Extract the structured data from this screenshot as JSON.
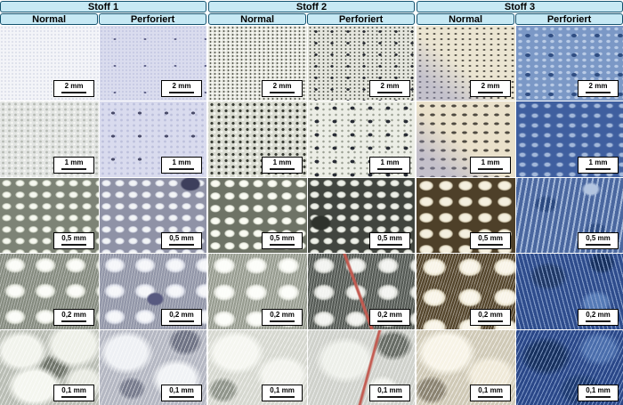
{
  "figure": {
    "groups": [
      {
        "title": "Stoff 1",
        "columns": [
          "Normal",
          "Perforiert"
        ]
      },
      {
        "title": "Stoff 2",
        "columns": [
          "Normal",
          "Perforiert"
        ]
      },
      {
        "title": "Stoff 3",
        "columns": [
          "Normal",
          "Perforiert"
        ]
      }
    ],
    "scale_labels": [
      "2 mm",
      "1 mm",
      "0,5 mm",
      "0,2 mm",
      "0,1 mm"
    ],
    "colors": {
      "header_fill": "#c7e9f4",
      "header_border": "#14536f",
      "scale_box_bg": "#ffffff",
      "scale_box_border": "#000000",
      "scale_bar": "#1a1a1a",
      "stoff1_lavender_tint": "#d9dbee",
      "stoff2_grey_green": "#e5e6de",
      "stoff3_blue": "#2e4c8c",
      "stoff2_red_fiber": "#c25a50"
    }
  }
}
